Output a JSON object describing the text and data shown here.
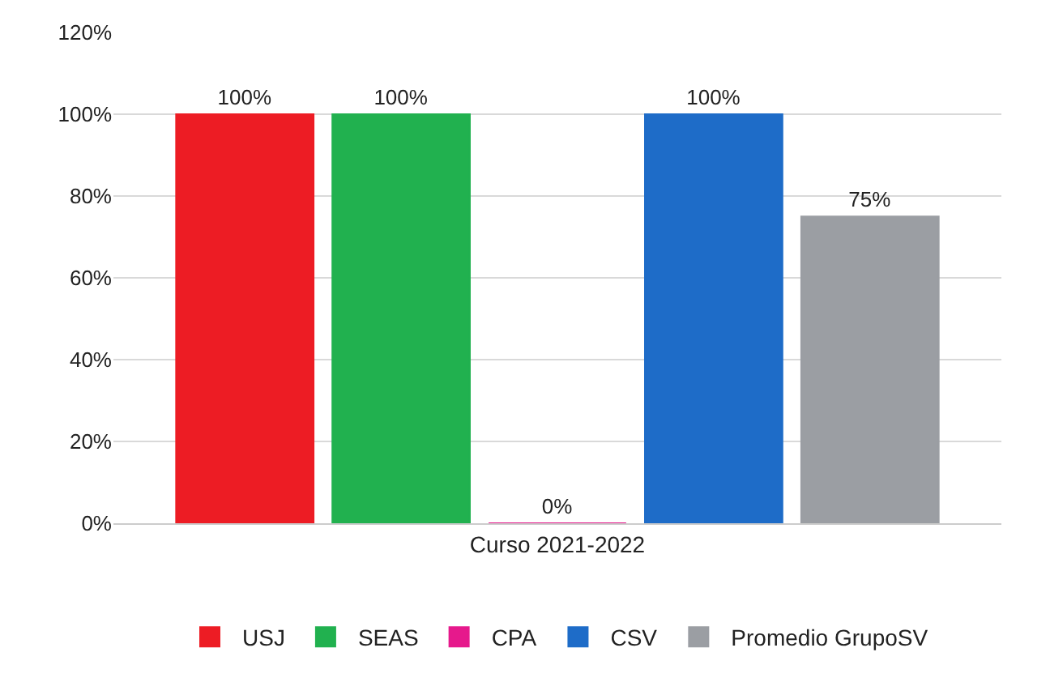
{
  "chart_data": {
    "type": "bar",
    "categories": [
      "Curso 2021-2022"
    ],
    "series": [
      {
        "name": "USJ",
        "color": "#ed1c24",
        "values": [
          100
        ],
        "value_labels": [
          "100%"
        ]
      },
      {
        "name": "SEAS",
        "color": "#21b14f",
        "values": [
          100
        ],
        "value_labels": [
          "100%"
        ]
      },
      {
        "name": "CPA",
        "color": "#e6198c",
        "values": [
          0
        ],
        "value_labels": [
          "0%"
        ]
      },
      {
        "name": "CSV",
        "color": "#1e6cc8",
        "values": [
          100
        ],
        "value_labels": [
          "100%"
        ]
      },
      {
        "name": "Promedio GrupoSV",
        "color": "#9b9ea3",
        "values": [
          75
        ],
        "value_labels": [
          "75%"
        ]
      }
    ],
    "ylim": [
      0,
      120
    ],
    "yticks": [
      {
        "value": 0,
        "label": "0%"
      },
      {
        "value": 20,
        "label": "20%"
      },
      {
        "value": 40,
        "label": "40%"
      },
      {
        "value": 60,
        "label": "60%"
      },
      {
        "value": 80,
        "label": "80%"
      },
      {
        "value": 100,
        "label": "100%"
      },
      {
        "value": 120,
        "label": "120%"
      }
    ],
    "grid": "y",
    "legend": "bottom"
  }
}
